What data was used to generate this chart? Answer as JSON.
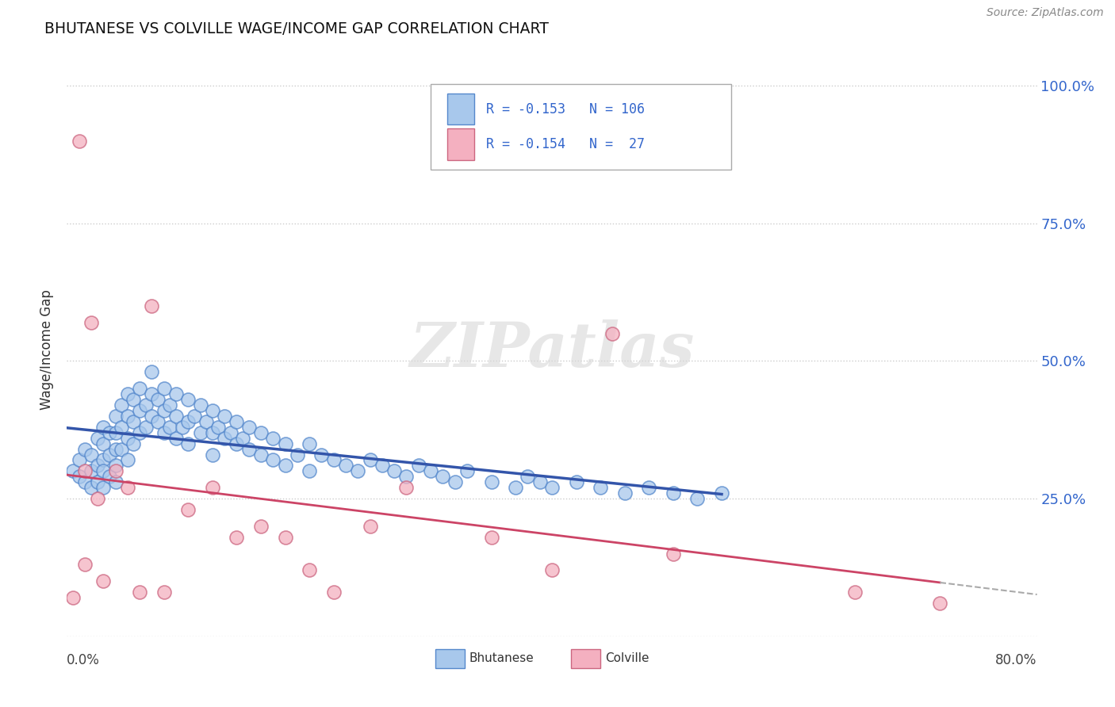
{
  "title": "BHUTANESE VS COLVILLE WAGE/INCOME GAP CORRELATION CHART",
  "source": "Source: ZipAtlas.com",
  "ylabel": "Wage/Income Gap",
  "watermark": "ZIPatlas",
  "legend_bhutanese": "Bhutanese",
  "legend_colville": "Colville",
  "R_bhutanese": -0.153,
  "N_bhutanese": 106,
  "R_colville": -0.154,
  "N_colville": 27,
  "color_bhutanese_fill": "#A8C8EC",
  "color_bhutanese_edge": "#5588CC",
  "color_colville_fill": "#F4B0C0",
  "color_colville_edge": "#CC6680",
  "color_line_bhutanese": "#3355AA",
  "color_line_colville": "#CC4466",
  "color_r_value": "#3366CC",
  "background_color": "#FFFFFF",
  "grid_color": "#CCCCCC",
  "title_color": "#111111",
  "right_ytick_color": "#3366CC",
  "bhutanese_points_x": [
    0.005,
    0.01,
    0.01,
    0.015,
    0.015,
    0.02,
    0.02,
    0.02,
    0.025,
    0.025,
    0.025,
    0.03,
    0.03,
    0.03,
    0.03,
    0.03,
    0.035,
    0.035,
    0.035,
    0.04,
    0.04,
    0.04,
    0.04,
    0.04,
    0.045,
    0.045,
    0.045,
    0.05,
    0.05,
    0.05,
    0.05,
    0.055,
    0.055,
    0.055,
    0.06,
    0.06,
    0.06,
    0.065,
    0.065,
    0.07,
    0.07,
    0.07,
    0.075,
    0.075,
    0.08,
    0.08,
    0.08,
    0.085,
    0.085,
    0.09,
    0.09,
    0.09,
    0.095,
    0.1,
    0.1,
    0.1,
    0.105,
    0.11,
    0.11,
    0.115,
    0.12,
    0.12,
    0.12,
    0.125,
    0.13,
    0.13,
    0.135,
    0.14,
    0.14,
    0.145,
    0.15,
    0.15,
    0.16,
    0.16,
    0.17,
    0.17,
    0.18,
    0.18,
    0.19,
    0.2,
    0.2,
    0.21,
    0.22,
    0.23,
    0.24,
    0.25,
    0.26,
    0.27,
    0.28,
    0.29,
    0.3,
    0.31,
    0.32,
    0.33,
    0.35,
    0.37,
    0.38,
    0.39,
    0.4,
    0.42,
    0.44,
    0.46,
    0.48,
    0.5,
    0.52,
    0.54
  ],
  "bhutanese_points_y": [
    0.3,
    0.32,
    0.29,
    0.34,
    0.28,
    0.33,
    0.3,
    0.27,
    0.36,
    0.31,
    0.28,
    0.38,
    0.35,
    0.32,
    0.3,
    0.27,
    0.37,
    0.33,
    0.29,
    0.4,
    0.37,
    0.34,
    0.31,
    0.28,
    0.42,
    0.38,
    0.34,
    0.44,
    0.4,
    0.36,
    0.32,
    0.43,
    0.39,
    0.35,
    0.45,
    0.41,
    0.37,
    0.42,
    0.38,
    0.48,
    0.44,
    0.4,
    0.43,
    0.39,
    0.45,
    0.41,
    0.37,
    0.42,
    0.38,
    0.44,
    0.4,
    0.36,
    0.38,
    0.43,
    0.39,
    0.35,
    0.4,
    0.42,
    0.37,
    0.39,
    0.41,
    0.37,
    0.33,
    0.38,
    0.4,
    0.36,
    0.37,
    0.39,
    0.35,
    0.36,
    0.38,
    0.34,
    0.37,
    0.33,
    0.36,
    0.32,
    0.35,
    0.31,
    0.33,
    0.35,
    0.3,
    0.33,
    0.32,
    0.31,
    0.3,
    0.32,
    0.31,
    0.3,
    0.29,
    0.31,
    0.3,
    0.29,
    0.28,
    0.3,
    0.28,
    0.27,
    0.29,
    0.28,
    0.27,
    0.28,
    0.27,
    0.26,
    0.27,
    0.26,
    0.25,
    0.26
  ],
  "colville_points_x": [
    0.005,
    0.01,
    0.015,
    0.015,
    0.02,
    0.025,
    0.03,
    0.04,
    0.05,
    0.06,
    0.07,
    0.08,
    0.1,
    0.12,
    0.14,
    0.16,
    0.18,
    0.2,
    0.22,
    0.25,
    0.28,
    0.35,
    0.4,
    0.45,
    0.5,
    0.65,
    0.72
  ],
  "colville_points_y": [
    0.07,
    0.9,
    0.3,
    0.13,
    0.57,
    0.25,
    0.1,
    0.3,
    0.27,
    0.08,
    0.6,
    0.08,
    0.23,
    0.27,
    0.18,
    0.2,
    0.18,
    0.12,
    0.08,
    0.2,
    0.27,
    0.18,
    0.12,
    0.55,
    0.15,
    0.08,
    0.06
  ],
  "xlim": [
    0.0,
    0.8
  ],
  "ylim": [
    0.0,
    1.04
  ],
  "ytick_positions": [
    0.0,
    0.25,
    0.5,
    0.75,
    1.0
  ],
  "ytick_labels_right": [
    "",
    "25.0%",
    "50.0%",
    "75.0%",
    "100.0%"
  ],
  "xtick_positions": [
    0.0,
    0.1,
    0.2,
    0.3,
    0.4,
    0.5,
    0.6,
    0.7,
    0.8
  ],
  "blue_line_x_end": 0.54,
  "pink_line_x_end": 0.8
}
